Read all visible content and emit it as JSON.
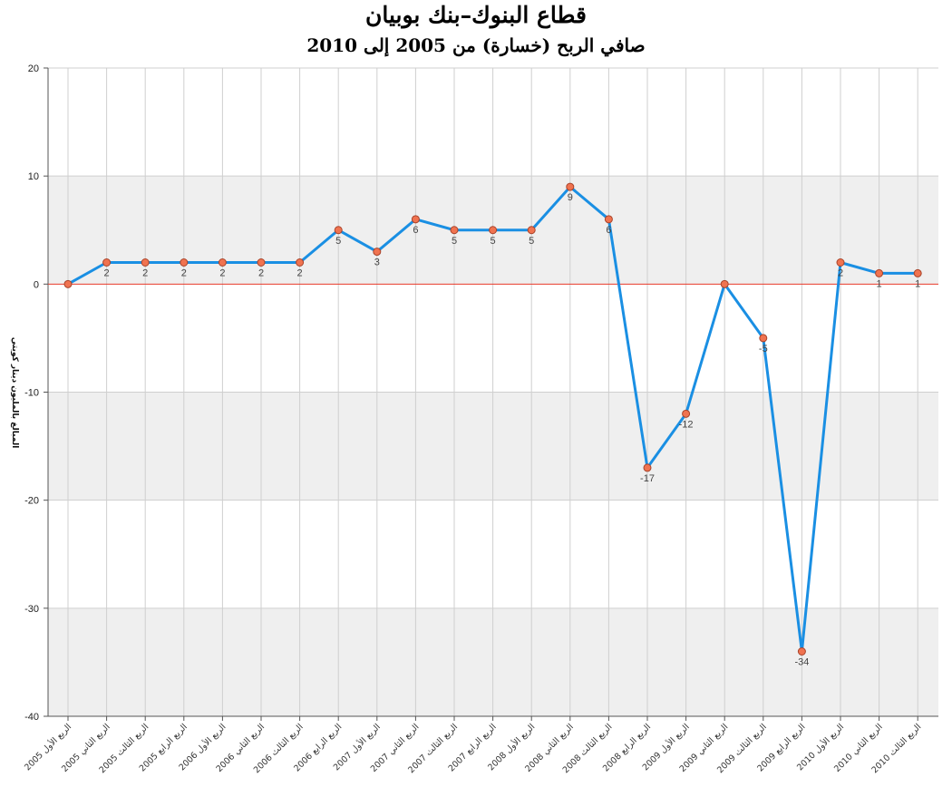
{
  "chart_data": {
    "type": "line",
    "title": "قطاع البنوك–بنك بوبيان",
    "subtitle": "صافي الربح (خسارة) من 2005 إلى 2010",
    "ylabel": "المبالغ بالمليون دينار كويتي",
    "xlabel": "",
    "ylim": [
      -40,
      20
    ],
    "yticks": [
      20,
      10,
      0,
      -10,
      -20,
      -30,
      -40
    ],
    "grid": true,
    "legend": "none",
    "categories": [
      "الربع الأول 2005",
      "الربع الثاني 2005",
      "الربع الثالث 2005",
      "الربع الرابع 2005",
      "الربع الأول 2006",
      "الربع الثاني 2006",
      "الربع الثالث 2006",
      "الربع الرابع 2006",
      "الربع الأول 2007",
      "الربع الثاني 2007",
      "الربع الثالث 2007",
      "الربع الرابع 2007",
      "الربع الأول 2008",
      "الربع الثاني 2008",
      "الربع الثالث 2008",
      "الربع الرابع 2008",
      "الربع الأول 2009",
      "الربع الثاني 2009",
      "الربع الثالث 2009",
      "الربع الرابع 2009",
      "الربع الأول 2010",
      "الربع الثاني 2010",
      "الربع الثالث 2010"
    ],
    "values": [
      0,
      2,
      2,
      2,
      2,
      2,
      2,
      5,
      3,
      6,
      5,
      5,
      5,
      9,
      6,
      -17,
      -12,
      0,
      -5,
      -34,
      2,
      1,
      1
    ],
    "labels": [
      "",
      "2",
      "2",
      "2",
      "2",
      "2",
      "2",
      "5",
      "3",
      "6",
      "5",
      "5",
      "5",
      "9",
      "6",
      "-17",
      "-12",
      "",
      "-5",
      "-34",
      "2",
      "1",
      "1"
    ],
    "colors": {
      "line": "#1a8fe3",
      "marker_fill": "#f07350",
      "marker_stroke": "#a8432a",
      "zero_line": "#e8392a",
      "band": "#efefef",
      "grid": "#cfcfcf"
    }
  }
}
